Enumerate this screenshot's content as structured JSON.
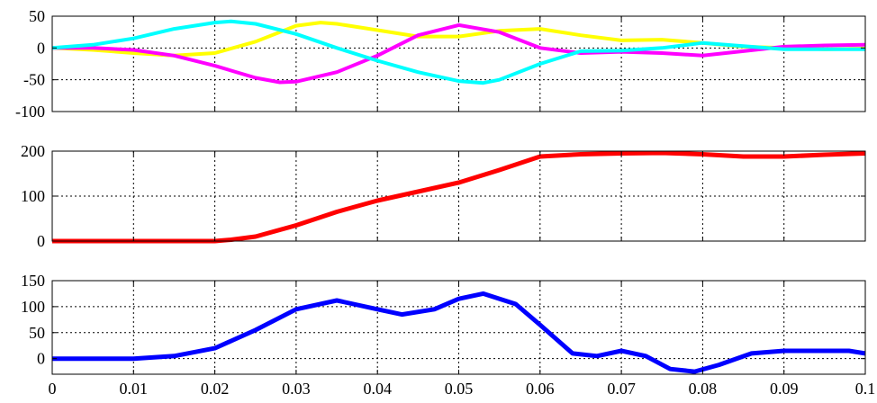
{
  "chart_data": [
    {
      "type": "line",
      "xlim": [
        0,
        0.1
      ],
      "ylim": [
        -100,
        50
      ],
      "yticks": [
        50,
        0,
        -50,
        -100
      ],
      "ytick_labels": [
        "50",
        "0",
        "-50",
        "-100"
      ],
      "xticks": [
        0,
        0.01,
        0.02,
        0.03,
        0.04,
        0.05,
        0.06,
        0.07,
        0.08,
        0.09,
        0.1
      ],
      "show_xtick_labels": false,
      "grid": true,
      "series": [
        {
          "color": "#ffff00",
          "x": [
            0,
            0.005,
            0.01,
            0.015,
            0.02,
            0.025,
            0.03,
            0.033,
            0.035,
            0.04,
            0.045,
            0.05,
            0.055,
            0.06,
            0.065,
            0.07,
            0.075,
            0.08,
            0.085,
            0.09,
            0.095,
            0.1
          ],
          "y": [
            0,
            -3,
            -8,
            -12,
            -8,
            10,
            35,
            40,
            38,
            28,
            18,
            18,
            27,
            30,
            20,
            12,
            13,
            8,
            2,
            0,
            -2,
            -1
          ]
        },
        {
          "color": "#ff00ff",
          "x": [
            0,
            0.005,
            0.01,
            0.015,
            0.02,
            0.025,
            0.028,
            0.03,
            0.035,
            0.04,
            0.045,
            0.05,
            0.055,
            0.06,
            0.065,
            0.07,
            0.075,
            0.08,
            0.085,
            0.09,
            0.095,
            0.1
          ],
          "y": [
            0,
            0,
            -3,
            -12,
            -28,
            -47,
            -54,
            -53,
            -38,
            -12,
            20,
            36,
            25,
            0,
            -8,
            -6,
            -8,
            -12,
            -5,
            2,
            4,
            5
          ]
        },
        {
          "color": "#00ffff",
          "x": [
            0,
            0.005,
            0.01,
            0.015,
            0.02,
            0.022,
            0.025,
            0.03,
            0.035,
            0.04,
            0.045,
            0.05,
            0.053,
            0.055,
            0.06,
            0.065,
            0.07,
            0.075,
            0.08,
            0.085,
            0.09,
            0.095,
            0.1
          ],
          "y": [
            0,
            5,
            15,
            30,
            40,
            42,
            38,
            22,
            0,
            -20,
            -38,
            -52,
            -55,
            -50,
            -25,
            -5,
            -4,
            0,
            8,
            3,
            -2,
            -2,
            -2
          ]
        }
      ]
    },
    {
      "type": "line",
      "xlim": [
        0,
        0.1
      ],
      "ylim": [
        0,
        200
      ],
      "yticks": [
        200,
        100,
        0
      ],
      "ytick_labels": [
        "200",
        "100",
        "0"
      ],
      "xticks": [
        0,
        0.01,
        0.02,
        0.03,
        0.04,
        0.05,
        0.06,
        0.07,
        0.08,
        0.09,
        0.1
      ],
      "show_xtick_labels": false,
      "grid": true,
      "series": [
        {
          "color": "#ff0000",
          "x": [
            0,
            0.01,
            0.02,
            0.022,
            0.025,
            0.03,
            0.035,
            0.04,
            0.045,
            0.05,
            0.055,
            0.06,
            0.065,
            0.07,
            0.075,
            0.08,
            0.085,
            0.09,
            0.095,
            0.1
          ],
          "y": [
            0,
            0,
            0,
            3,
            10,
            35,
            65,
            90,
            110,
            130,
            158,
            188,
            193,
            195,
            196,
            193,
            188,
            188,
            192,
            195
          ]
        }
      ]
    },
    {
      "type": "line",
      "xlim": [
        0,
        0.1
      ],
      "ylim": [
        -30,
        150
      ],
      "yticks": [
        150,
        100,
        50,
        0
      ],
      "ytick_labels": [
        "150",
        "100",
        "50",
        "0"
      ],
      "xticks": [
        0,
        0.01,
        0.02,
        0.03,
        0.04,
        0.05,
        0.06,
        0.07,
        0.08,
        0.09,
        0.1
      ],
      "xtick_labels": [
        "0",
        "0.01",
        "0.02",
        "0.03",
        "0.04",
        "0.05",
        "0.06",
        "0.07",
        "0.08",
        "0.09",
        "0.1"
      ],
      "show_xtick_labels": true,
      "grid": true,
      "series": [
        {
          "color": "#0000ff",
          "x": [
            0,
            0.01,
            0.015,
            0.02,
            0.025,
            0.03,
            0.035,
            0.04,
            0.043,
            0.047,
            0.05,
            0.053,
            0.057,
            0.06,
            0.064,
            0.067,
            0.07,
            0.073,
            0.076,
            0.079,
            0.082,
            0.086,
            0.09,
            0.094,
            0.098,
            0.1
          ],
          "y": [
            0,
            0,
            5,
            20,
            55,
            95,
            112,
            95,
            85,
            95,
            115,
            125,
            105,
            65,
            10,
            5,
            15,
            5,
            -20,
            -25,
            -12,
            10,
            15,
            15,
            15,
            10
          ]
        }
      ]
    }
  ]
}
